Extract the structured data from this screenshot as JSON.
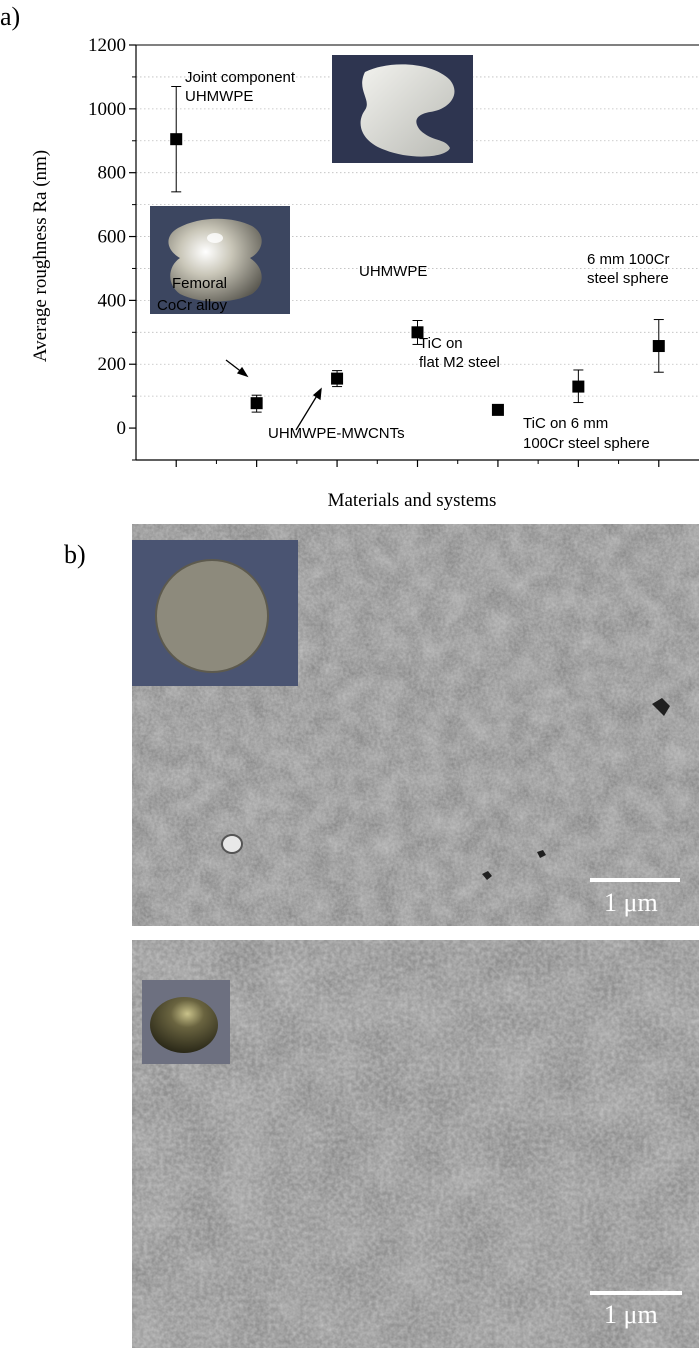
{
  "panel_labels": {
    "a": "a)",
    "b": "b)"
  },
  "chart_data": {
    "type": "scatter",
    "title": "",
    "xlabel": "Materials and systems",
    "ylabel": "Average roughness Ra (nm)",
    "ylim": [
      -100,
      1200
    ],
    "yticks": [
      0,
      200,
      400,
      600,
      800,
      1000,
      1200
    ],
    "xlim": [
      0.5,
      7.5
    ],
    "grid": true,
    "series": [
      {
        "points": [
          {
            "x": 1,
            "y": 905,
            "err_low": 740,
            "err_high": 1070
          },
          {
            "x": 2,
            "y": 78,
            "err_low": 50,
            "err_high": 103
          },
          {
            "x": 3,
            "y": 155,
            "err_low": 130,
            "err_high": 180
          },
          {
            "x": 4,
            "y": 300,
            "err_low": 262,
            "err_high": 337
          },
          {
            "x": 5,
            "y": 57,
            "err_low": 57,
            "err_high": 57
          },
          {
            "x": 6,
            "y": 130,
            "err_low": 80,
            "err_high": 182
          },
          {
            "x": 7,
            "y": 257,
            "err_low": 175,
            "err_high": 340
          }
        ]
      }
    ],
    "annotations": [
      {
        "lines": [
          "Joint component",
          "UHMWPE"
        ]
      },
      {
        "lines": [
          "Femoral",
          "CoCr alloy"
        ]
      },
      {
        "lines": [
          "UHMWPE-MWCNTs"
        ]
      },
      {
        "lines": [
          "UHMWPE"
        ]
      },
      {
        "lines": [
          "TiC on",
          "flat M2 steel"
        ]
      },
      {
        "lines": [
          "TiC on 6 mm",
          "100Cr steel sphere"
        ]
      },
      {
        "lines": [
          "6 mm 100Cr",
          "steel sphere"
        ]
      }
    ]
  },
  "sem_images": [
    {
      "scale_label": "1 μm"
    },
    {
      "scale_label": "1 μm"
    }
  ],
  "colors": {
    "marker": "#000000",
    "grid": "#bdbdbd",
    "sem_gray": "#6c6c6c"
  }
}
